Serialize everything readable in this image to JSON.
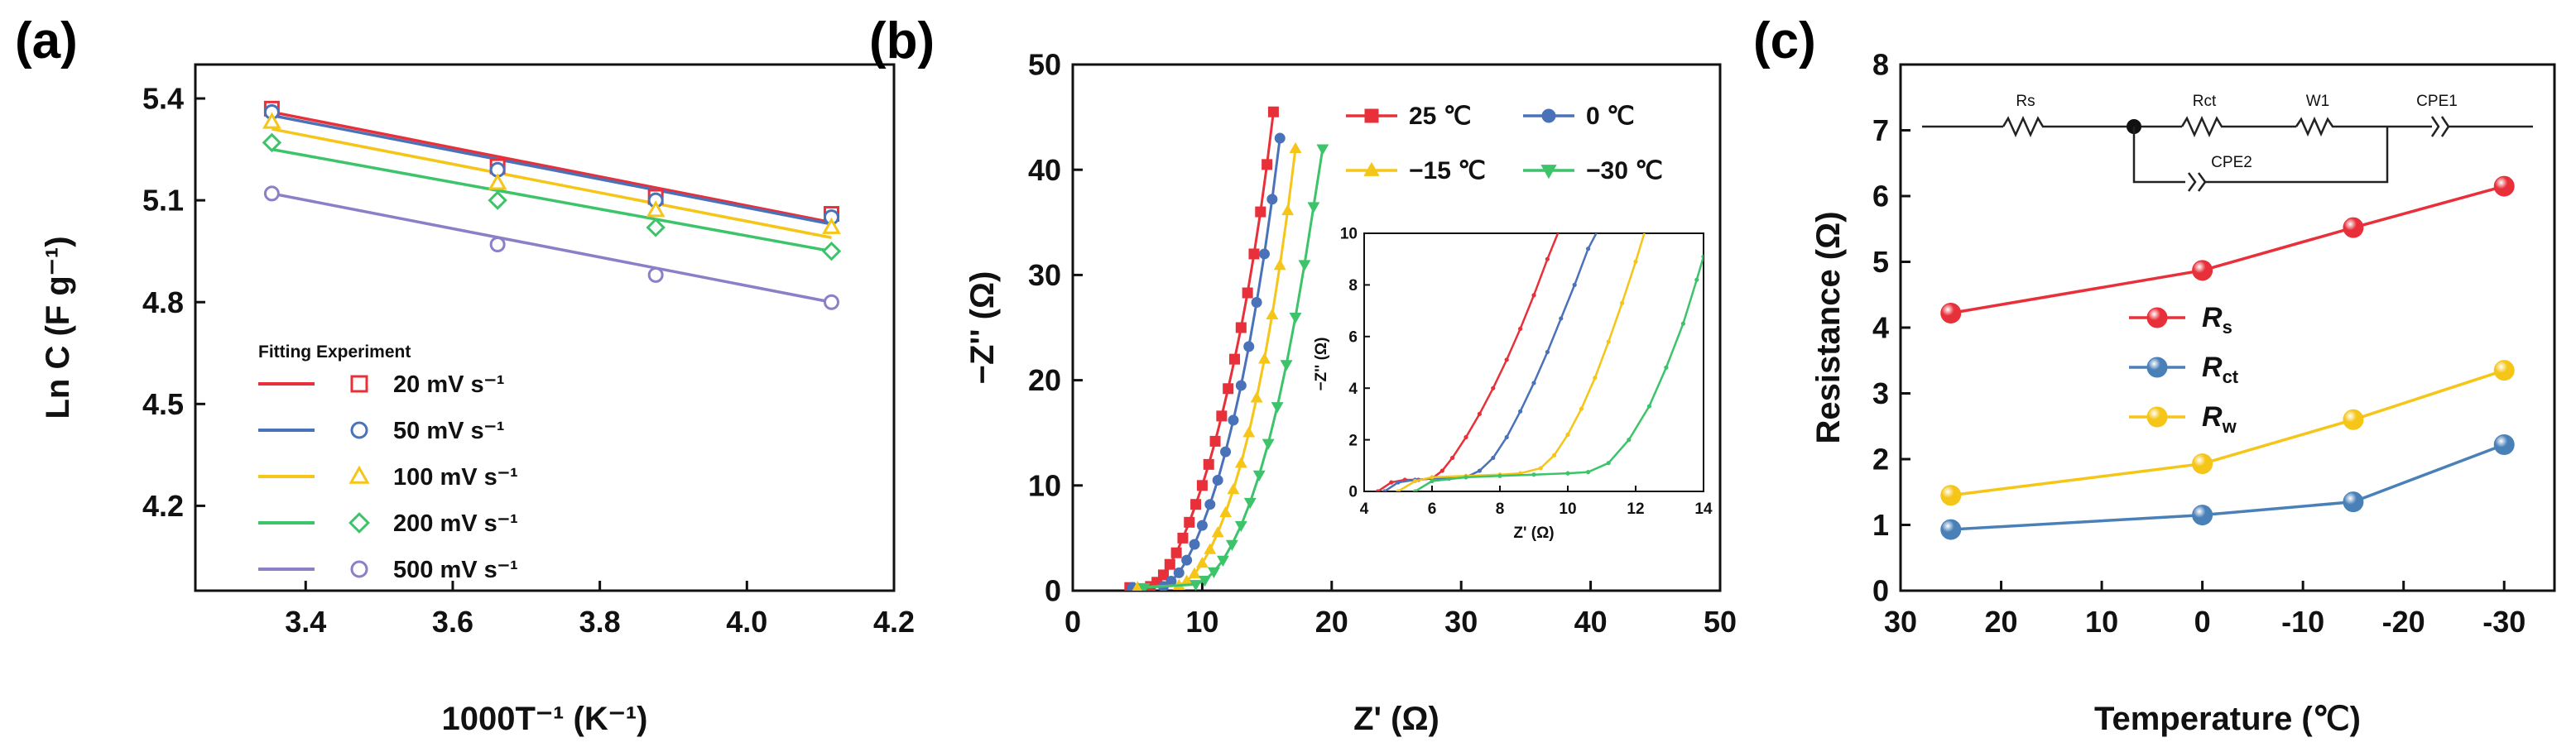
{
  "panels": [
    {
      "letter": "(a)",
      "chart_data": {
        "type": "scatter",
        "xlabel": "1000T⁻¹ (K⁻¹)",
        "ylabel": "Ln C (F g⁻¹)",
        "xlim": [
          3.25,
          4.2
        ],
        "ylim": [
          3.95,
          5.5
        ],
        "xticks": [
          "3.4",
          "3.6",
          "3.8",
          "4.0",
          "4.2"
        ],
        "xtick_values": [
          3.4,
          3.6,
          3.8,
          4.0,
          4.2
        ],
        "yticks": [
          "4.2",
          "4.5",
          "4.8",
          "5.1",
          "5.4"
        ],
        "ytick_values": [
          4.2,
          4.5,
          4.8,
          5.1,
          5.4
        ],
        "legend_header": "Fitting Experiment",
        "legend_position": "bottom-left",
        "x": [
          3.354,
          3.661,
          3.876,
          4.115
        ],
        "series": [
          {
            "name": "20 mV s⁻¹",
            "color": "#e8303a",
            "marker": "square",
            "values": [
              5.37,
              5.2,
              5.11,
              5.06
            ],
            "fit": [
              5.36,
              5.035
            ]
          },
          {
            "name": "50 mV s⁻¹",
            "color": "#4a72b8",
            "marker": "circle",
            "values": [
              5.36,
              5.19,
              5.1,
              5.05
            ],
            "fit": [
              5.35,
              5.03
            ]
          },
          {
            "name": "100 mV s⁻¹",
            "color": "#f5c518",
            "marker": "triangle",
            "values": [
              5.33,
              5.15,
              5.07,
              5.02
            ],
            "fit": [
              5.31,
              4.99
            ]
          },
          {
            "name": "200 mV s⁻¹",
            "color": "#3dc46a",
            "marker": "diamond",
            "values": [
              5.27,
              5.1,
              5.02,
              4.95
            ],
            "fit": [
              5.25,
              4.95
            ]
          },
          {
            "name": "500 mV s⁻¹",
            "color": "#8b7fc8",
            "marker": "circle",
            "values": [
              5.12,
              4.97,
              4.88,
              4.8
            ],
            "fit": [
              5.12,
              4.8
            ]
          }
        ]
      }
    },
    {
      "letter": "(b)",
      "chart_data": {
        "type": "line",
        "xlabel": "Z' (Ω)",
        "ylabel": "−Z'' (Ω)",
        "xlim": [
          0,
          50
        ],
        "ylim": [
          0,
          50
        ],
        "xticks": [
          "0",
          "10",
          "20",
          "30",
          "40",
          "50"
        ],
        "xtick_values": [
          0,
          10,
          20,
          30,
          40,
          50
        ],
        "yticks": [
          "0",
          "10",
          "20",
          "30",
          "40",
          "50"
        ],
        "ytick_values": [
          0,
          10,
          20,
          30,
          40,
          50
        ],
        "legend_position": "top-right",
        "series": [
          {
            "name": "25 ℃",
            "color": "#e8303a",
            "marker": "square",
            "x": [
              4.4,
              6.0,
              6.5,
              7.0,
              7.5,
              8.0,
              8.5,
              9.0,
              9.5,
              10.0,
              10.5,
              11.0,
              11.5,
              12.0,
              12.5,
              13.0,
              13.5,
              14.0,
              14.5,
              15.0,
              15.5
            ],
            "y": [
              0.3,
              0.4,
              0.8,
              1.5,
              2.5,
              3.6,
              5.0,
              6.5,
              8.2,
              10.0,
              12.0,
              14.2,
              16.6,
              19.2,
              22.0,
              25.0,
              28.3,
              32.0,
              36.0,
              40.5,
              45.5
            ]
          },
          {
            "name": "0 ℃",
            "color": "#4a72b8",
            "marker": "circle",
            "x": [
              4.6,
              7.0,
              7.6,
              8.2,
              8.8,
              9.4,
              10.0,
              10.6,
              11.2,
              11.8,
              12.4,
              13.0,
              13.6,
              14.2,
              14.8,
              15.4,
              16.0
            ],
            "y": [
              0.3,
              0.4,
              0.9,
              1.7,
              2.9,
              4.4,
              6.2,
              8.2,
              10.5,
              13.2,
              16.2,
              19.5,
              23.2,
              27.4,
              32.0,
              37.2,
              43.0
            ]
          },
          {
            "name": "−15 ℃",
            "color": "#f5c518",
            "marker": "triangle",
            "x": [
              5.0,
              8.2,
              8.8,
              9.4,
              10.0,
              10.6,
              11.2,
              11.8,
              12.4,
              13.0,
              13.6,
              14.2,
              14.8,
              15.4,
              16.0,
              16.6,
              17.2
            ],
            "y": [
              0.3,
              0.5,
              0.9,
              1.6,
              2.6,
              3.9,
              5.5,
              7.4,
              9.6,
              12.1,
              15.0,
              18.3,
              22.0,
              26.2,
              30.9,
              36.1,
              42.0
            ]
          },
          {
            "name": "−30 ℃",
            "color": "#3dc46a",
            "marker": "triangle-down",
            "x": [
              5.5,
              9.5,
              10.2,
              10.9,
              11.6,
              12.3,
              13.0,
              13.7,
              14.4,
              15.1,
              15.8,
              16.5,
              17.2,
              17.9,
              18.6,
              19.3
            ],
            "y": [
              0.3,
              0.6,
              1.0,
              1.8,
              2.9,
              4.4,
              6.2,
              8.4,
              11.0,
              14.0,
              17.5,
              21.5,
              26.0,
              31.0,
              36.5,
              42.0
            ]
          }
        ],
        "inset": {
          "xlabel": "Z' (Ω)",
          "ylabel": "−Z'' (Ω)",
          "xlim": [
            4,
            14
          ],
          "ylim": [
            0,
            10
          ],
          "xticks": [
            "4",
            "6",
            "8",
            "10",
            "12",
            "14"
          ],
          "xtick_values": [
            4,
            6,
            8,
            10,
            12,
            14
          ],
          "yticks": [
            "0",
            "2",
            "4",
            "6",
            "8",
            "10"
          ],
          "ytick_values": [
            0,
            2,
            4,
            6,
            8,
            10
          ],
          "curves": [
            {
              "color": "#e8303a",
              "x": [
                4.4,
                4.8,
                5.2,
                5.6,
                6.0,
                6.3,
                6.6,
                7.0,
                7.4,
                7.8,
                8.2,
                8.6,
                9.0,
                9.4,
                9.8
              ],
              "y": [
                0.0,
                0.35,
                0.45,
                0.45,
                0.5,
                0.8,
                1.3,
                2.1,
                3.0,
                4.0,
                5.1,
                6.3,
                7.6,
                9.0,
                10.3
              ]
            },
            {
              "color": "#4a72b8",
              "x": [
                4.6,
                5.0,
                5.5,
                6.0,
                6.5,
                7.0,
                7.4,
                7.8,
                8.2,
                8.6,
                9.0,
                9.4,
                9.8,
                10.2,
                10.6,
                11.0
              ],
              "y": [
                0.0,
                0.35,
                0.45,
                0.5,
                0.5,
                0.55,
                0.8,
                1.3,
                2.1,
                3.1,
                4.2,
                5.4,
                6.7,
                8.0,
                9.4,
                10.4
              ]
            },
            {
              "color": "#f5c518",
              "x": [
                5.0,
                5.5,
                6.0,
                7.0,
                8.0,
                8.6,
                9.2,
                9.6,
                10.0,
                10.4,
                10.8,
                11.2,
                11.6,
                12.0,
                12.3
              ],
              "y": [
                0.0,
                0.4,
                0.55,
                0.6,
                0.65,
                0.7,
                0.9,
                1.4,
                2.2,
                3.2,
                4.4,
                5.8,
                7.3,
                8.9,
                10.2
              ]
            },
            {
              "color": "#3dc46a",
              "x": [
                5.5,
                6.0,
                7.0,
                8.0,
                9.0,
                10.0,
                10.6,
                11.2,
                11.8,
                12.4,
                12.9,
                13.4,
                13.8,
                14.0
              ],
              "y": [
                0.0,
                0.4,
                0.55,
                0.6,
                0.65,
                0.7,
                0.75,
                1.1,
                2.0,
                3.3,
                4.8,
                6.5,
                8.2,
                9.1
              ]
            }
          ]
        }
      }
    },
    {
      "letter": "(c)",
      "chart_data": {
        "type": "line",
        "xlabel": "Temperature (℃)",
        "ylabel": "Resistance (Ω)",
        "xlim": [
          30,
          -35
        ],
        "ylim": [
          0,
          8
        ],
        "xticks": [
          "30",
          "20",
          "10",
          "0",
          "-10",
          "-20",
          "-30"
        ],
        "xtick_values": [
          30,
          20,
          10,
          0,
          -10,
          -20,
          -30
        ],
        "yticks": [
          "0",
          "1",
          "2",
          "3",
          "4",
          "5",
          "6",
          "7",
          "8"
        ],
        "ytick_values": [
          0,
          1,
          2,
          3,
          4,
          5,
          6,
          7,
          8
        ],
        "legend_position": "center",
        "x": [
          25,
          0,
          -15,
          -30
        ],
        "series": [
          {
            "name": "R",
            "sub": "s",
            "color": "#e8303a",
            "values": [
              4.22,
              4.87,
              5.52,
              6.15
            ]
          },
          {
            "name": "R",
            "sub": "ct",
            "color": "#4a80b8",
            "values": [
              0.93,
              1.15,
              1.35,
              2.22
            ]
          },
          {
            "name": "R",
            "sub": "w",
            "color": "#f5c518",
            "values": [
              1.45,
              1.93,
              2.6,
              3.35
            ]
          }
        ],
        "circuit": {
          "labels": [
            "Rs",
            "Rct",
            "W1",
            "CPE1",
            "CPE2"
          ]
        }
      }
    }
  ]
}
